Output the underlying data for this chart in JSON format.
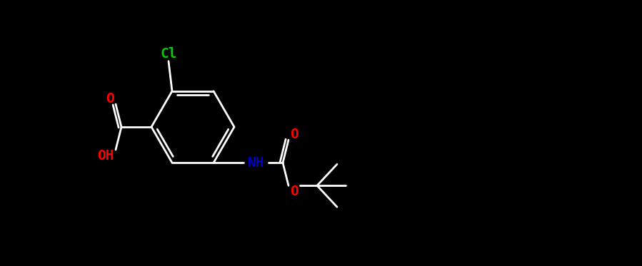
{
  "background": "#000000",
  "bond_color": "#ffffff",
  "bond_lw": 2.0,
  "atom_colors": {
    "O": "#ff0000",
    "N": "#0000cc",
    "Cl": "#00cc00",
    "C": "#ffffff",
    "H": "#ffffff"
  },
  "font_size": 14,
  "font_size_small": 13
}
